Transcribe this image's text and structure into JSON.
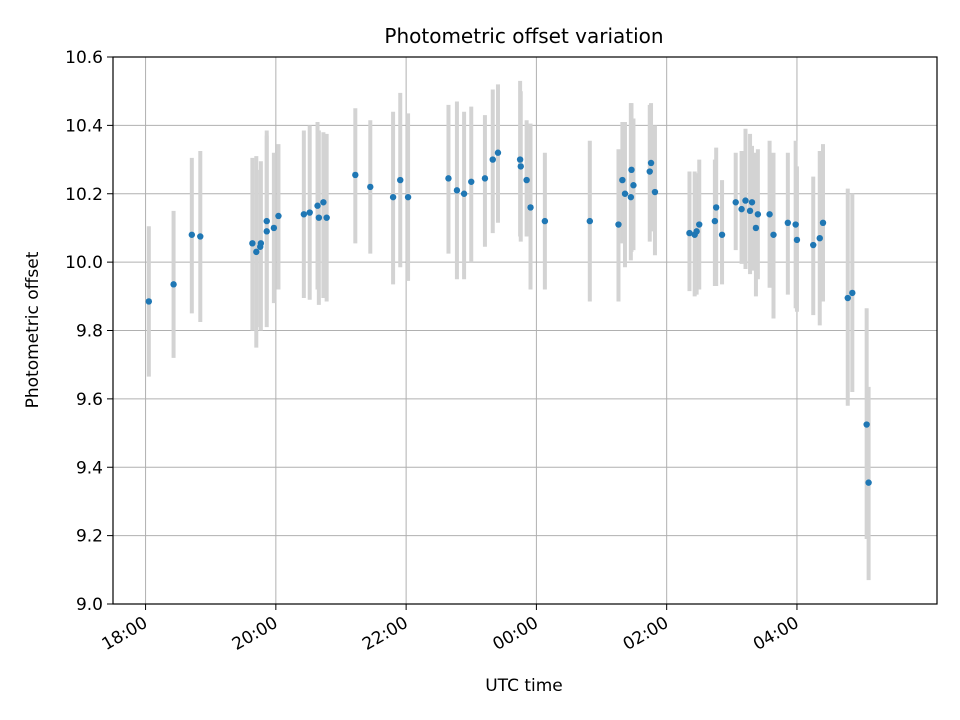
{
  "chart_data": {
    "type": "scatter",
    "title": "Photometric offset variation",
    "xlabel": "UTC time",
    "ylabel": "Photometric offset",
    "x_unit": "hours since 00:00 UTC (negative = previous day)",
    "xlim": [
      -6.5,
      6.15
    ],
    "ylim": [
      9.0,
      10.6
    ],
    "x_ticks": [
      {
        "value": -6,
        "label": "18:00"
      },
      {
        "value": -4,
        "label": "20:00"
      },
      {
        "value": -2,
        "label": "22:00"
      },
      {
        "value": 0,
        "label": "00:00"
      },
      {
        "value": 2,
        "label": "02:00"
      },
      {
        "value": 4,
        "label": "04:00"
      }
    ],
    "y_ticks": [
      9.0,
      9.2,
      9.4,
      9.6,
      9.8,
      10.0,
      10.2,
      10.4,
      10.6
    ],
    "y_tick_labels": [
      "9.0",
      "9.2",
      "9.4",
      "9.6",
      "9.8",
      "10.0",
      "10.2",
      "10.4",
      "10.6"
    ],
    "grid": true,
    "point_color": "#1f77b4",
    "errorbar_color": "#d3d3d3",
    "points": [
      {
        "x": -5.95,
        "y": 9.885,
        "lo": 9.665,
        "hi": 10.105
      },
      {
        "x": -5.57,
        "y": 9.935,
        "lo": 9.72,
        "hi": 10.15
      },
      {
        "x": -5.29,
        "y": 10.08,
        "lo": 9.85,
        "hi": 10.305
      },
      {
        "x": -5.16,
        "y": 10.075,
        "lo": 9.825,
        "hi": 10.325
      },
      {
        "x": -4.36,
        "y": 10.055,
        "lo": 9.8,
        "hi": 10.305
      },
      {
        "x": -4.3,
        "y": 10.03,
        "lo": 9.75,
        "hi": 10.31
      },
      {
        "x": -4.23,
        "y": 10.055,
        "lo": 9.8,
        "hi": 10.295
      },
      {
        "x": -4.24,
        "y": 10.045,
        "lo": 9.81,
        "hi": 10.27
      },
      {
        "x": -4.14,
        "y": 10.12,
        "lo": 9.86,
        "hi": 10.385
      },
      {
        "x": -4.14,
        "y": 10.09,
        "lo": 9.81,
        "hi": 10.37
      },
      {
        "x": -4.03,
        "y": 10.1,
        "lo": 9.88,
        "hi": 10.32
      },
      {
        "x": -3.96,
        "y": 10.135,
        "lo": 9.92,
        "hi": 10.345
      },
      {
        "x": -3.57,
        "y": 10.14,
        "lo": 9.895,
        "hi": 10.385
      },
      {
        "x": -3.48,
        "y": 10.145,
        "lo": 9.89,
        "hi": 10.4
      },
      {
        "x": -3.36,
        "y": 10.165,
        "lo": 9.92,
        "hi": 10.41
      },
      {
        "x": -3.34,
        "y": 10.13,
        "lo": 9.875,
        "hi": 10.385
      },
      {
        "x": -3.27,
        "y": 10.175,
        "lo": 9.895,
        "hi": 10.38
      },
      {
        "x": -3.22,
        "y": 10.13,
        "lo": 9.885,
        "hi": 10.375
      },
      {
        "x": -2.78,
        "y": 10.255,
        "lo": 10.055,
        "hi": 10.45
      },
      {
        "x": -2.55,
        "y": 10.22,
        "lo": 10.025,
        "hi": 10.415
      },
      {
        "x": -2.2,
        "y": 10.19,
        "lo": 9.935,
        "hi": 10.44
      },
      {
        "x": -2.09,
        "y": 10.24,
        "lo": 9.985,
        "hi": 10.495
      },
      {
        "x": -1.97,
        "y": 10.19,
        "lo": 9.945,
        "hi": 10.435
      },
      {
        "x": -1.35,
        "y": 10.245,
        "lo": 10.025,
        "hi": 10.46
      },
      {
        "x": -1.22,
        "y": 10.21,
        "lo": 9.95,
        "hi": 10.47
      },
      {
        "x": -1.11,
        "y": 10.2,
        "lo": 9.95,
        "hi": 10.44
      },
      {
        "x": -1.0,
        "y": 10.235,
        "lo": 10.0,
        "hi": 10.455
      },
      {
        "x": -0.79,
        "y": 10.245,
        "lo": 10.045,
        "hi": 10.43
      },
      {
        "x": -0.67,
        "y": 10.3,
        "lo": 10.085,
        "hi": 10.505
      },
      {
        "x": -0.59,
        "y": 10.32,
        "lo": 10.115,
        "hi": 10.52
      },
      {
        "x": -0.25,
        "y": 10.3,
        "lo": 10.075,
        "hi": 10.53
      },
      {
        "x": -0.24,
        "y": 10.28,
        "lo": 10.06,
        "hi": 10.5
      },
      {
        "x": -0.15,
        "y": 10.24,
        "lo": 10.075,
        "hi": 10.415
      },
      {
        "x": -0.09,
        "y": 10.16,
        "lo": 9.92,
        "hi": 10.405
      },
      {
        "x": 0.13,
        "y": 10.12,
        "lo": 9.92,
        "hi": 10.32
      },
      {
        "x": 0.82,
        "y": 10.12,
        "lo": 9.885,
        "hi": 10.355
      },
      {
        "x": 1.26,
        "y": 10.11,
        "lo": 9.885,
        "hi": 10.33
      },
      {
        "x": 1.32,
        "y": 10.24,
        "lo": 10.055,
        "hi": 10.41
      },
      {
        "x": 1.36,
        "y": 10.2,
        "lo": 9.985,
        "hi": 10.41
      },
      {
        "x": 1.45,
        "y": 10.19,
        "lo": 10.005,
        "hi": 10.465
      },
      {
        "x": 1.46,
        "y": 10.27,
        "lo": 10.03,
        "hi": 10.465
      },
      {
        "x": 1.49,
        "y": 10.225,
        "lo": 10.035,
        "hi": 10.42
      },
      {
        "x": 1.74,
        "y": 10.265,
        "lo": 10.06,
        "hi": 10.46
      },
      {
        "x": 1.76,
        "y": 10.29,
        "lo": 10.09,
        "hi": 10.465
      },
      {
        "x": 1.82,
        "y": 10.205,
        "lo": 10.02,
        "hi": 10.4
      },
      {
        "x": 2.35,
        "y": 10.085,
        "lo": 9.915,
        "hi": 10.265
      },
      {
        "x": 2.43,
        "y": 10.08,
        "lo": 9.9,
        "hi": 10.265
      },
      {
        "x": 2.46,
        "y": 10.09,
        "lo": 9.905,
        "hi": 10.26
      },
      {
        "x": 2.5,
        "y": 10.11,
        "lo": 9.92,
        "hi": 10.3
      },
      {
        "x": 2.76,
        "y": 10.16,
        "lo": 9.93,
        "hi": 10.335
      },
      {
        "x": 2.74,
        "y": 10.12,
        "lo": 9.93,
        "hi": 10.3
      },
      {
        "x": 2.85,
        "y": 10.08,
        "lo": 9.935,
        "hi": 10.24
      },
      {
        "x": 3.06,
        "y": 10.175,
        "lo": 10.035,
        "hi": 10.32
      },
      {
        "x": 3.15,
        "y": 10.155,
        "lo": 9.995,
        "hi": 10.325
      },
      {
        "x": 3.21,
        "y": 10.18,
        "lo": 9.98,
        "hi": 10.39
      },
      {
        "x": 3.28,
        "y": 10.15,
        "lo": 9.965,
        "hi": 10.375
      },
      {
        "x": 3.31,
        "y": 10.175,
        "lo": 9.975,
        "hi": 10.34
      },
      {
        "x": 3.37,
        "y": 10.1,
        "lo": 9.9,
        "hi": 10.32
      },
      {
        "x": 3.4,
        "y": 10.14,
        "lo": 9.95,
        "hi": 10.33
      },
      {
        "x": 3.58,
        "y": 10.14,
        "lo": 9.925,
        "hi": 10.355
      },
      {
        "x": 3.64,
        "y": 10.08,
        "lo": 9.835,
        "hi": 10.32
      },
      {
        "x": 3.86,
        "y": 10.115,
        "lo": 9.905,
        "hi": 10.32
      },
      {
        "x": 3.98,
        "y": 10.11,
        "lo": 9.865,
        "hi": 10.355
      },
      {
        "x": 4.0,
        "y": 10.065,
        "lo": 9.855,
        "hi": 10.28
      },
      {
        "x": 4.25,
        "y": 10.05,
        "lo": 9.845,
        "hi": 10.25
      },
      {
        "x": 4.35,
        "y": 10.07,
        "lo": 9.815,
        "hi": 10.325
      },
      {
        "x": 4.4,
        "y": 10.115,
        "lo": 9.885,
        "hi": 10.345
      },
      {
        "x": 4.78,
        "y": 9.895,
        "lo": 9.58,
        "hi": 10.215
      },
      {
        "x": 4.85,
        "y": 9.91,
        "lo": 9.62,
        "hi": 10.2
      },
      {
        "x": 5.07,
        "y": 9.525,
        "lo": 9.19,
        "hi": 9.865
      },
      {
        "x": 5.1,
        "y": 9.355,
        "lo": 9.07,
        "hi": 9.635
      }
    ]
  }
}
